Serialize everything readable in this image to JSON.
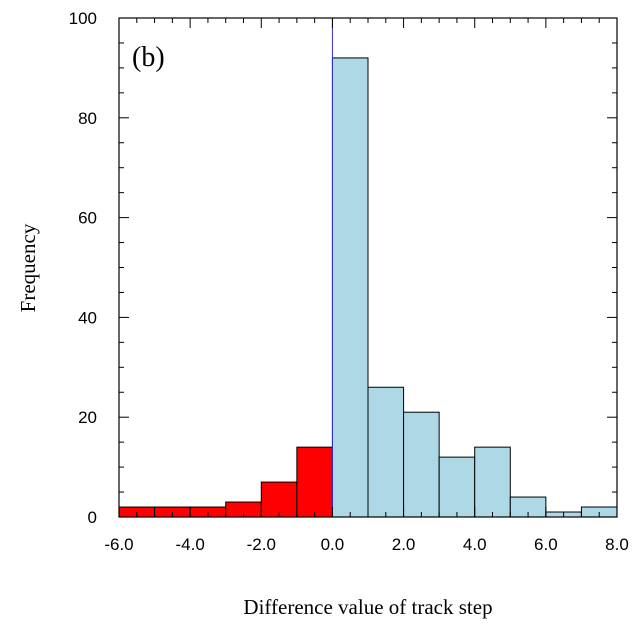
{
  "chart_data": {
    "type": "bar",
    "panel_label": "(b)",
    "title": "",
    "xlabel": "Difference value of track step",
    "ylabel": "Frequency",
    "xlim": [
      -6.0,
      8.0
    ],
    "ylim": [
      0,
      100
    ],
    "x_ticks": [
      "-6.0",
      "-4.0",
      "-2.0",
      "0.0",
      "2.0",
      "4.0",
      "6.0",
      "8.0"
    ],
    "y_ticks": [
      "0",
      "20",
      "40",
      "60",
      "80",
      "100"
    ],
    "bin_width": 1.0,
    "bins": [
      {
        "x0": -6.0,
        "x1": -5.0,
        "value": 2
      },
      {
        "x0": -5.0,
        "x1": -4.0,
        "value": 2
      },
      {
        "x0": -4.0,
        "x1": -3.0,
        "value": 2
      },
      {
        "x0": -3.0,
        "x1": -2.0,
        "value": 3
      },
      {
        "x0": -2.0,
        "x1": -1.0,
        "value": 7
      },
      {
        "x0": -1.0,
        "x1": 0.0,
        "value": 14
      },
      {
        "x0": 0.0,
        "x1": 1.0,
        "value": 92
      },
      {
        "x0": 1.0,
        "x1": 2.0,
        "value": 26
      },
      {
        "x0": 2.0,
        "x1": 3.0,
        "value": 21
      },
      {
        "x0": 3.0,
        "x1": 4.0,
        "value": 12
      },
      {
        "x0": 4.0,
        "x1": 5.0,
        "value": 14
      },
      {
        "x0": 5.0,
        "x1": 6.0,
        "value": 4
      },
      {
        "x0": 6.0,
        "x1": 7.0,
        "value": 1
      },
      {
        "x0": 7.0,
        "x1": 8.0,
        "value": 2
      }
    ],
    "colors": {
      "negative": "#ff0000",
      "positive": "#add8e6",
      "zero_line": "#3333cc",
      "outline": "#000000"
    },
    "grid": false,
    "legend": "none"
  }
}
